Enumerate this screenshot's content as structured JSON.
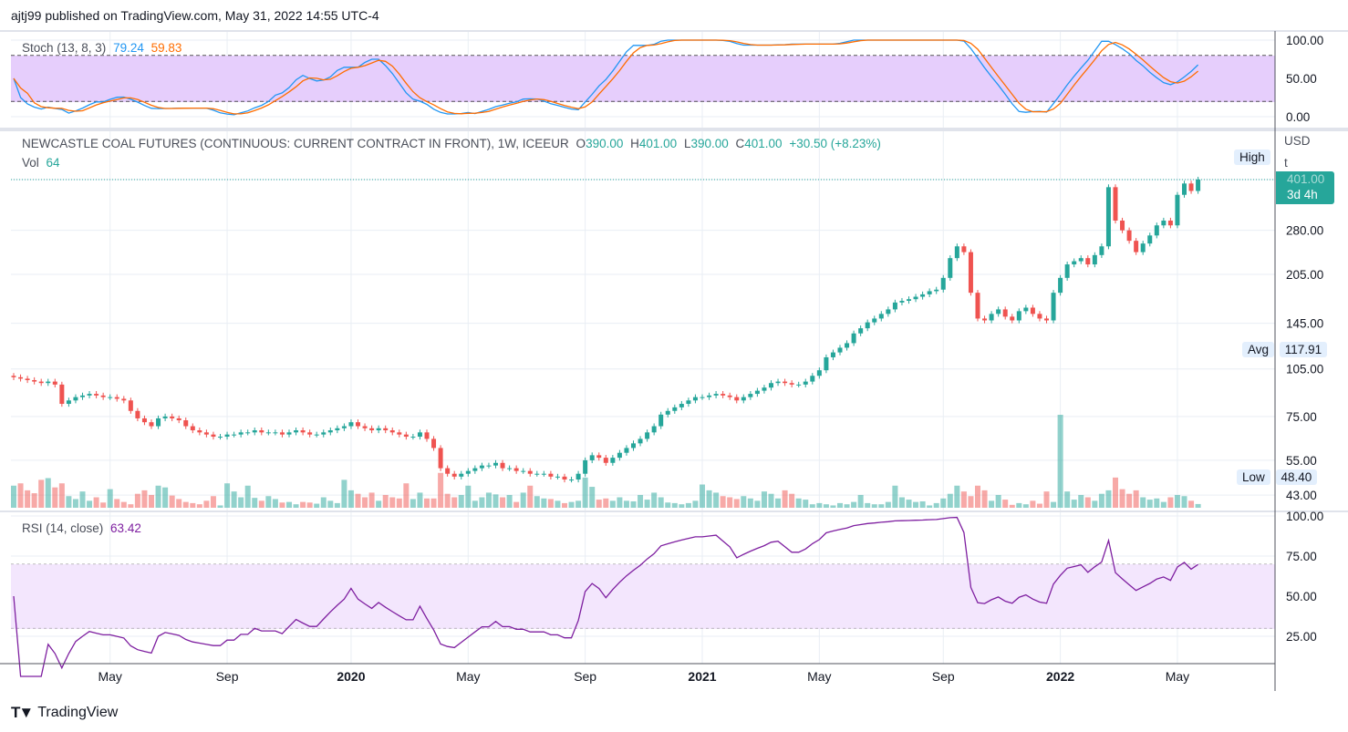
{
  "publish_line": "ajtj99 published on TradingView.com, May 31, 2022 14:55 UTC-4",
  "footer_logo": "TradingView",
  "colors": {
    "up": "#26a69a",
    "down": "#ef5350",
    "stoch_k": "#2196f3",
    "stoch_d": "#ff6d00",
    "rsi": "#7e1fa0",
    "band_stoch": "#e6cefc",
    "band_rsi": "#f3e6fd",
    "grid": "#e9eef4"
  },
  "stoch": {
    "label": "Stoch (13, 8, 3)",
    "k": "79.24",
    "d": "59.83",
    "axis": [
      "100.00",
      "50.00",
      "0.00"
    ]
  },
  "main": {
    "symbol": "NEWCASTLE COAL FUTURES (CONTINUOUS: CURRENT CONTRACT IN FRONT), 1W, ICEEUR",
    "o_label": "O",
    "o": "390.00",
    "h_label": "H",
    "h": "401.00",
    "l_label": "L",
    "l": "390.00",
    "c_label": "C",
    "c": "401.00",
    "change": "+30.50 (+8.23%)",
    "vol_label": "Vol",
    "vol": "64",
    "currency": "USD",
    "currency_sub": "t",
    "high_label": "High",
    "last_price": "401.00",
    "countdown": "3d 4h",
    "avg_label": "Avg",
    "avg": "117.91",
    "low_label": "Low",
    "low": "48.40"
  },
  "rsi": {
    "label": "RSI (14, close)",
    "value": "63.42",
    "axis": [
      "100.00",
      "75.00",
      "50.00",
      "25.00"
    ]
  },
  "chart_data": {
    "type": "candlestick",
    "title": "NEWCASTLE COAL FUTURES (CONTINUOUS: CURRENT CONTRACT IN FRONT), 1W, ICEEUR",
    "yscale": "log",
    "ylim": [
      43,
      401
    ],
    "price_ticks": [
      "401.00",
      "280.00",
      "205.00",
      "145.00",
      "105.00",
      "75.00",
      "55.00",
      "43.00"
    ],
    "price_tick_values": [
      401,
      280,
      205,
      145,
      105,
      75,
      55,
      43
    ],
    "time_ticks": [
      "May",
      "Sep",
      "2020",
      "May",
      "Sep",
      "2021",
      "May",
      "Sep",
      "2022",
      "May"
    ],
    "time_tick_week_index": [
      14,
      31,
      49,
      66,
      83,
      100,
      117,
      135,
      152,
      169
    ],
    "weekly_close": [
      99,
      98,
      97,
      96,
      95,
      96,
      94,
      82,
      84,
      86,
      87,
      88,
      87,
      86,
      86,
      85,
      84,
      78,
      74,
      72,
      70,
      74,
      75,
      74,
      73,
      70,
      68,
      67,
      66,
      65,
      65,
      66,
      66,
      67,
      67,
      68,
      67,
      67,
      67,
      66,
      67,
      68,
      67,
      66,
      66,
      67,
      68,
      69,
      70,
      72,
      70,
      69,
      68,
      69,
      68,
      67,
      66,
      65,
      65,
      67,
      64,
      60,
      52,
      50,
      49,
      50,
      51,
      52,
      53,
      53,
      54,
      52,
      52,
      51,
      51,
      50,
      50,
      50,
      49,
      49,
      48,
      48,
      50,
      55,
      57,
      56,
      54,
      56,
      58,
      60,
      62,
      64,
      67,
      70,
      76,
      78,
      80,
      82,
      84,
      86,
      86,
      87,
      88,
      87,
      86,
      84,
      86,
      88,
      90,
      92,
      95,
      96,
      95,
      94,
      94,
      96,
      100,
      104,
      114,
      118,
      122,
      126,
      135,
      140,
      146,
      150,
      155,
      160,
      168,
      170,
      172,
      175,
      178,
      182,
      184,
      200,
      230,
      250,
      240,
      180,
      150,
      148,
      155,
      160,
      152,
      148,
      158,
      162,
      155,
      150,
      148,
      180,
      200,
      220,
      225,
      230,
      220,
      235,
      250,
      380,
      300,
      280,
      260,
      240,
      255,
      270,
      290,
      300,
      290,
      360,
      390,
      370,
      401
    ],
    "weekly_volume": [
      380,
      420,
      300,
      250,
      480,
      510,
      350,
      420,
      200,
      150,
      280,
      120,
      180,
      90,
      320,
      150,
      100,
      60,
      240,
      300,
      220,
      380,
      350,
      210,
      150,
      100,
      80,
      60,
      120,
      200,
      40,
      420,
      280,
      180,
      380,
      170,
      120,
      200,
      150,
      90,
      100,
      60,
      100,
      90,
      70,
      180,
      120,
      80,
      480,
      300,
      240,
      180,
      260,
      120,
      220,
      180,
      160,
      420,
      150,
      260,
      160,
      160,
      600,
      240,
      180,
      220,
      380,
      120,
      180,
      260,
      230,
      180,
      220,
      100,
      260,
      380,
      200,
      160,
      150,
      120,
      80,
      100,
      120,
      520,
      360,
      140,
      160,
      120,
      180,
      120,
      110,
      220,
      140,
      260,
      180,
      90,
      80,
      60,
      80,
      120,
      400,
      300,
      260,
      200,
      180,
      150,
      200,
      160,
      120,
      280,
      240,
      160,
      300,
      240,
      160,
      140,
      60,
      80,
      60,
      40,
      80,
      60,
      100,
      220,
      80,
      60,
      60,
      100,
      380,
      180,
      140,
      100,
      110,
      40,
      80,
      160,
      240,
      380,
      280,
      200,
      380,
      300,
      120,
      220,
      140,
      50,
      80,
      60,
      120,
      70,
      280,
      100,
      1600,
      280,
      140,
      220,
      180,
      120,
      240,
      300,
      520,
      320,
      240,
      300,
      180,
      140,
      160,
      100,
      180,
      220,
      200,
      120,
      64
    ]
  }
}
